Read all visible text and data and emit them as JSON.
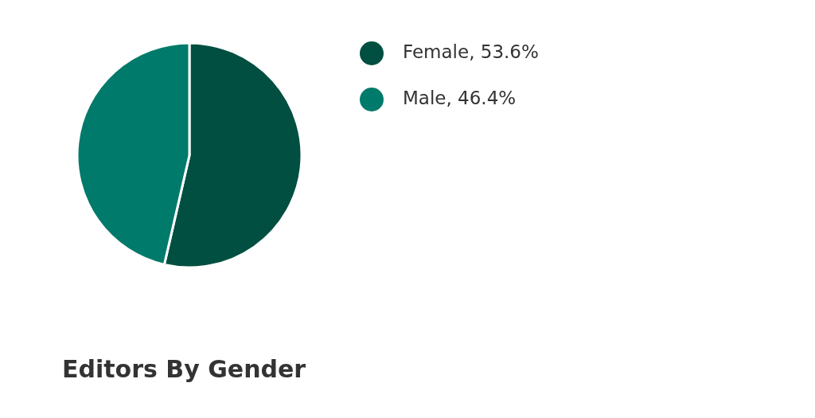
{
  "chart_data": {
    "type": "pie",
    "title": "Editors By Gender",
    "categories": [
      "Female, 53.6%",
      "Male, 46.4%"
    ],
    "values": [
      53.6,
      46.4
    ],
    "colors": [
      "#004f40",
      "#007a6a"
    ],
    "legend": "right"
  }
}
